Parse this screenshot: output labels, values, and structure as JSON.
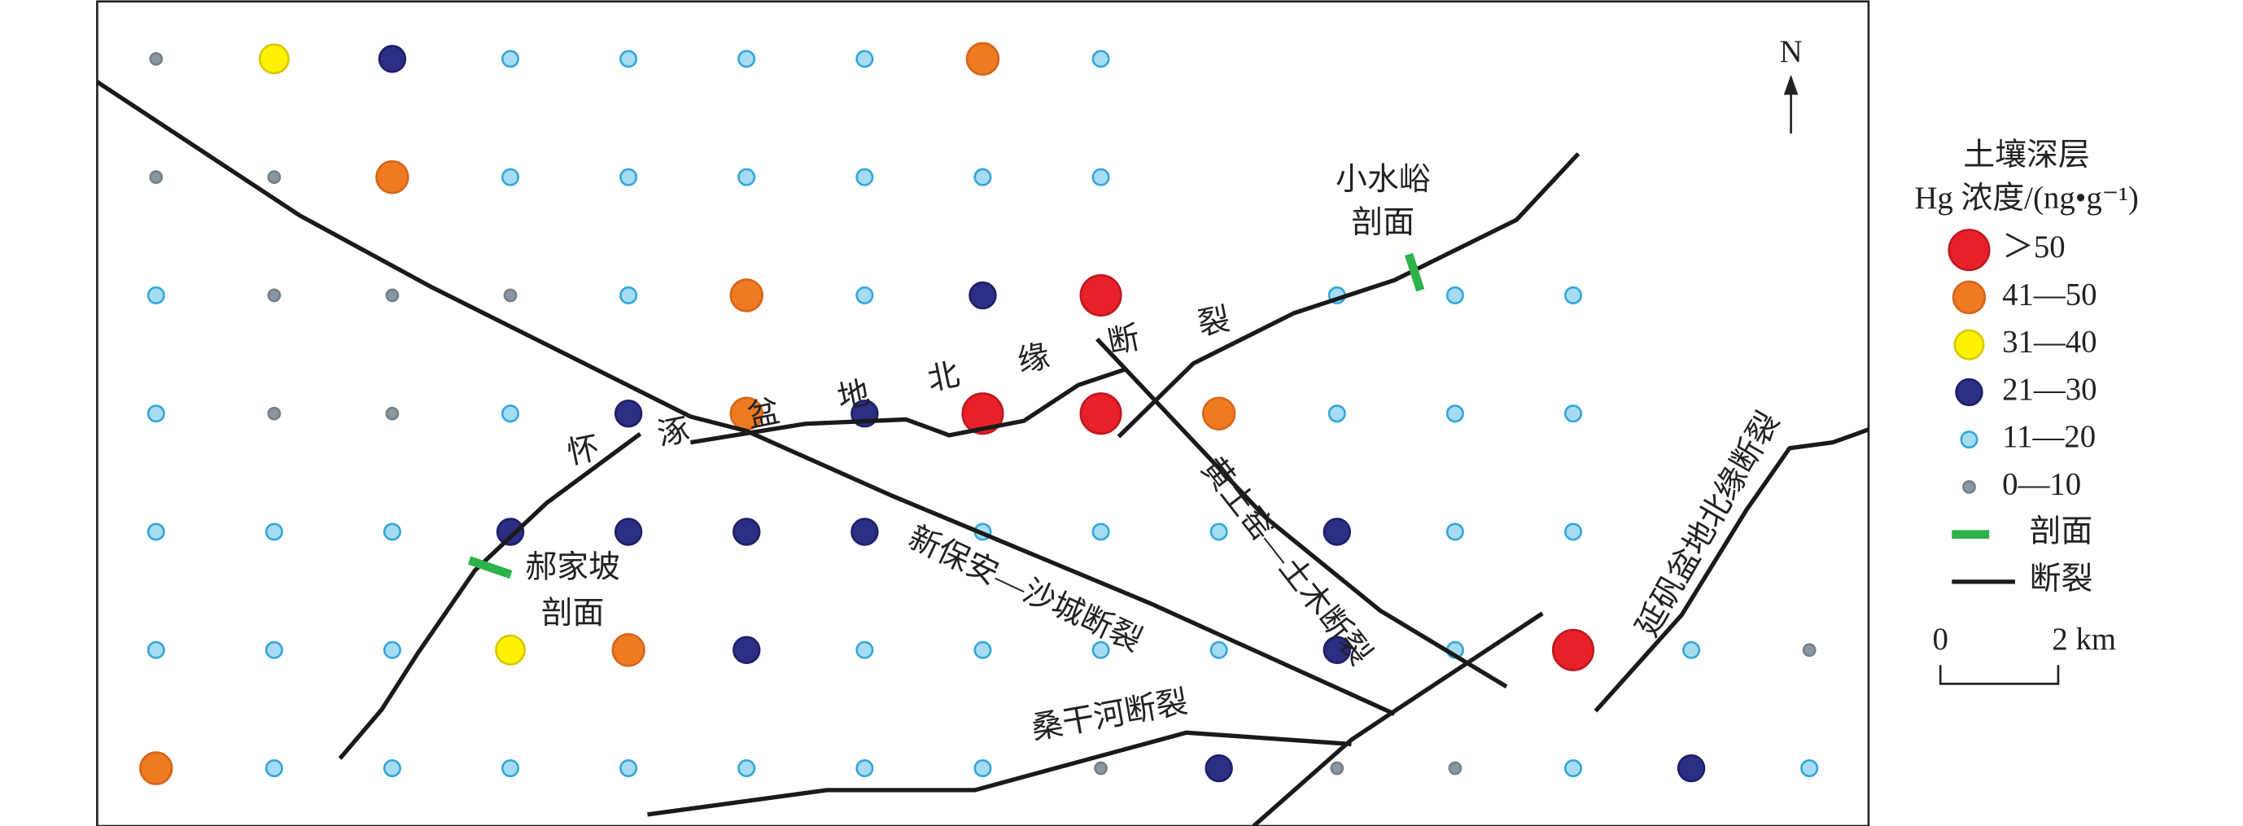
{
  "north": "N",
  "legend": {
    "title": [
      "土壤深层",
      "Hg 浓度/(ng•g⁻¹)"
    ],
    "items": [
      "＞50",
      "41—50",
      "31—40",
      "21—30",
      "11—20",
      "0—10",
      "剖面",
      "断裂"
    ]
  },
  "scale": {
    "start": "0",
    "end": "2 km"
  },
  "profiles": [
    [
      "小水峪",
      "剖面"
    ],
    [
      "郝家坡",
      "剖面"
    ]
  ],
  "faults": [
    "怀涿盆地北缘断裂",
    "新保安—沙城断裂",
    "黄土窑—土木断裂",
    "延矾盆地北缘断裂",
    "桑干河断裂"
  ]
}
